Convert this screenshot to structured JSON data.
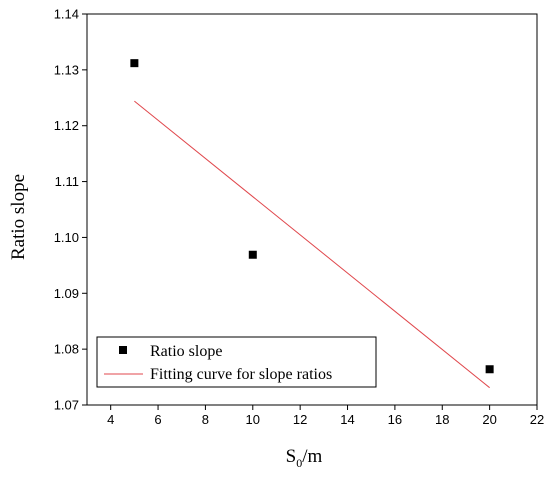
{
  "chart_data": {
    "type": "scatter",
    "xlabel": "S",
    "xlabel_sub": "0",
    "xlabel_suffix": "/m",
    "ylabel": "Ratio slope",
    "xlim": [
      3,
      22
    ],
    "ylim": [
      1.07,
      1.14
    ],
    "xticks": [
      4,
      6,
      8,
      10,
      12,
      14,
      16,
      18,
      20,
      22
    ],
    "yticks": [
      1.07,
      1.08,
      1.09,
      1.1,
      1.11,
      1.12,
      1.13,
      1.14
    ],
    "ytick_decimals": 2,
    "grid": false,
    "legend_position": "bottom-left",
    "series": [
      {
        "name": "Ratio slope",
        "kind": "scatter",
        "marker": "square",
        "color": "#000000",
        "x": [
          5,
          10,
          20
        ],
        "y": [
          1.1312,
          1.0969,
          1.0764
        ]
      },
      {
        "name": "Fitting curve for slope ratios",
        "kind": "line",
        "color": "#e0474c",
        "x": [
          5,
          20
        ],
        "y": [
          1.1244,
          1.0731
        ]
      }
    ]
  }
}
